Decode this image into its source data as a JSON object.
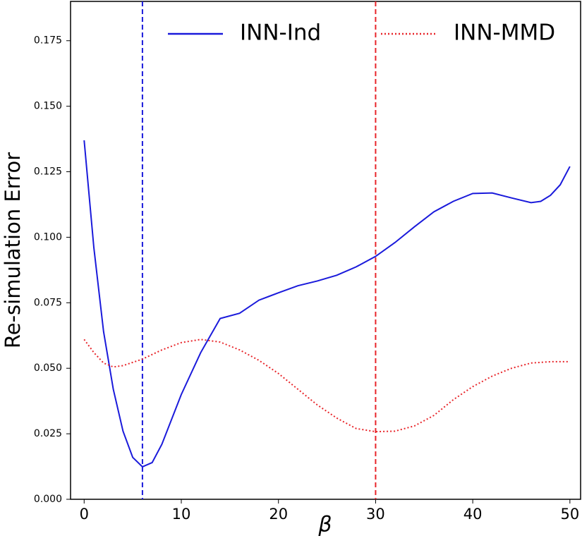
{
  "chart_data": {
    "type": "line",
    "ylabel": "Re-simulation Error",
    "xlabel": "β",
    "xlim": [
      -1.4,
      51.1
    ],
    "ylim": [
      0,
      0.19
    ],
    "xticks": [
      0,
      10,
      20,
      30,
      40,
      50
    ],
    "yticks": [
      {
        "value": 0,
        "label": "0.000"
      },
      {
        "value": 0.025,
        "label": "0.025"
      },
      {
        "value": 0.05,
        "label": "0.050"
      },
      {
        "value": 0.075,
        "label": "0.075"
      },
      {
        "value": 0.1,
        "label": "0.100"
      },
      {
        "value": 0.125,
        "label": "0.125"
      },
      {
        "value": 0.15,
        "label": "0.150"
      },
      {
        "value": 0.175,
        "label": "0.175"
      }
    ],
    "legend": "top",
    "vlines": [
      {
        "x": 6,
        "color": "#1a1adb"
      },
      {
        "x": 30,
        "color": "#e8252a"
      }
    ],
    "series": [
      {
        "name": "INN-Ind",
        "color": "#1a1adb",
        "style": "solid",
        "x": [
          0,
          1,
          2,
          3,
          4,
          5,
          6,
          7,
          8,
          10,
          12,
          14,
          16,
          18,
          20,
          22,
          24,
          26,
          28,
          30,
          32,
          34,
          36,
          38,
          40,
          42,
          44,
          46,
          47,
          48,
          49,
          50
        ],
        "values": [
          0.137,
          0.096,
          0.064,
          0.042,
          0.026,
          0.016,
          0.0124,
          0.014,
          0.021,
          0.04,
          0.056,
          0.069,
          0.071,
          0.076,
          0.0788,
          0.0815,
          0.0833,
          0.0855,
          0.0887,
          0.0927,
          0.098,
          0.104,
          0.1097,
          0.1137,
          0.1167,
          0.1169,
          0.115,
          0.1132,
          0.1137,
          0.116,
          0.12,
          0.127
        ]
      },
      {
        "name": "INN-MMD",
        "color": "#e8252a",
        "style": "dotted",
        "x": [
          0,
          1,
          2,
          3,
          4,
          6,
          8,
          10,
          12,
          14,
          16,
          18,
          20,
          22,
          24,
          26,
          28,
          30,
          32,
          34,
          36,
          38,
          40,
          42,
          44,
          46,
          48,
          50
        ],
        "values": [
          0.061,
          0.056,
          0.052,
          0.0505,
          0.051,
          0.0535,
          0.057,
          0.0598,
          0.061,
          0.06,
          0.057,
          0.053,
          0.048,
          0.042,
          0.036,
          0.031,
          0.027,
          0.0258,
          0.026,
          0.028,
          0.032,
          0.038,
          0.043,
          0.047,
          0.05,
          0.052,
          0.0525,
          0.0525
        ]
      }
    ]
  }
}
